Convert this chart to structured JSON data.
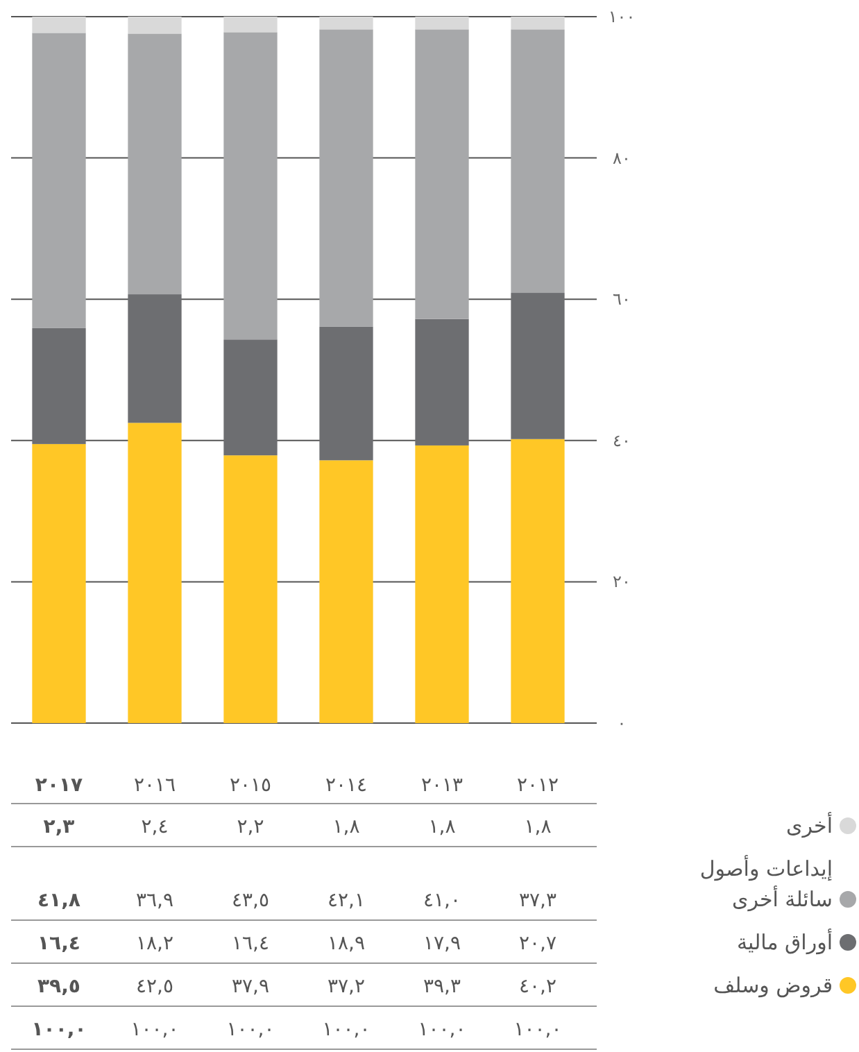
{
  "chart_data": {
    "type": "bar",
    "stacked": true,
    "categories": [
      "٢٠١٧",
      "٢٠١٦",
      "٢٠١٥",
      "٢٠١٤",
      "٢٠١٣",
      "٢٠١٢"
    ],
    "ylim": [
      0,
      100
    ],
    "yticks": [
      {
        "value": 0,
        "label": "٠"
      },
      {
        "value": 20,
        "label": "٢٠"
      },
      {
        "value": 40,
        "label": "٤٠"
      },
      {
        "value": 60,
        "label": "٦٠"
      },
      {
        "value": 80,
        "label": "٨٠"
      },
      {
        "value": 100,
        "label": "١٠٠"
      }
    ],
    "grid": "y",
    "legend": "bottom right",
    "series": [
      {
        "name": "قروض وسلف",
        "color": "#ffc726",
        "values": [
          39.5,
          42.5,
          37.9,
          37.2,
          39.3,
          40.2
        ],
        "value_labels": [
          "٣٩,٥",
          "٤٢,٥",
          "٣٧,٩",
          "٣٧,٢",
          "٣٩,٣",
          "٤٠,٢"
        ]
      },
      {
        "name": "أوراق مالية",
        "color": "#6d6e71",
        "values": [
          16.4,
          18.2,
          16.4,
          18.9,
          17.9,
          20.7
        ],
        "value_labels": [
          "١٦,٤",
          "١٨,٢",
          "١٦,٤",
          "١٨,٩",
          "١٧,٩",
          "٢٠,٧"
        ]
      },
      {
        "name": "إيداعات وأصول سائلة أخرى",
        "color": "#a7a8aa",
        "values": [
          41.8,
          36.9,
          43.5,
          42.1,
          41.0,
          37.3
        ],
        "value_labels": [
          "٤١,٨",
          "٣٦,٩",
          "٤٣,٥",
          "٤٢,١",
          "٤١,٠",
          "٣٧,٣"
        ]
      },
      {
        "name": "أخرى",
        "color": "#d9d9d9",
        "values": [
          2.3,
          2.4,
          2.2,
          1.8,
          1.8,
          1.8
        ],
        "value_labels": [
          "٢,٣",
          "٢,٤",
          "٢,٢",
          "١,٨",
          "١,٨",
          "١,٨"
        ]
      }
    ],
    "annotations": [
      "١٠٠,٠",
      "١٠٠,٠",
      "١٠٠,٠",
      "١٠٠,٠",
      "١٠٠,٠",
      "١٠٠,٠"
    ]
  }
}
